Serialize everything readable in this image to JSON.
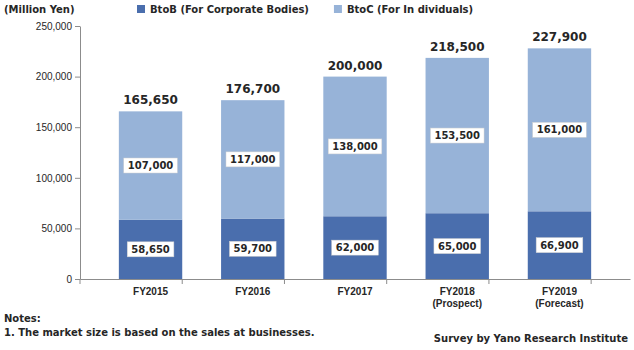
{
  "chart_data": {
    "type": "bar",
    "stacked": true,
    "data_labels": true,
    "legend": "top",
    "grid": false,
    "y_label": "(Million Yen)",
    "categories": [
      "FY2015",
      "FY2016",
      "FY2017",
      "FY2018 (Prospect)",
      "FY2019 (Forecast)"
    ],
    "series": [
      {
        "name": "BtoB (For Corporate Bodies)",
        "color": "#4a6ead",
        "values": [
          58650,
          59700,
          62000,
          65000,
          66900
        ],
        "value_labels": [
          "58,650",
          "59,700",
          "62,000",
          "65,000",
          "66,900"
        ]
      },
      {
        "name": "BtoC (For In dividuals)",
        "color": "#97b3d8",
        "values": [
          107000,
          117000,
          138000,
          153500,
          161000
        ],
        "value_labels": [
          "107,000",
          "117,000",
          "138,000",
          "153,500",
          "161,000"
        ]
      }
    ],
    "totals": [
      165650,
      176700,
      200000,
      218500,
      227900
    ],
    "total_labels": [
      "165,650",
      "176,700",
      "200,000",
      "218,500",
      "227,900"
    ],
    "ylim": [
      0,
      250000
    ],
    "yticks": [
      0,
      {
        "value": 50000,
        "label": "50,000"
      },
      {
        "value": 100000,
        "label": "100,000"
      },
      {
        "value": 150000,
        "label": "150,000"
      },
      {
        "value": 200000,
        "label": "200,000"
      },
      {
        "value": 250000,
        "label": "250,000"
      }
    ],
    "notes_title": "Notes:",
    "notes": [
      "1. The market size is based on the sales at businesses."
    ],
    "source": "Survey by Yano Research Institute"
  }
}
